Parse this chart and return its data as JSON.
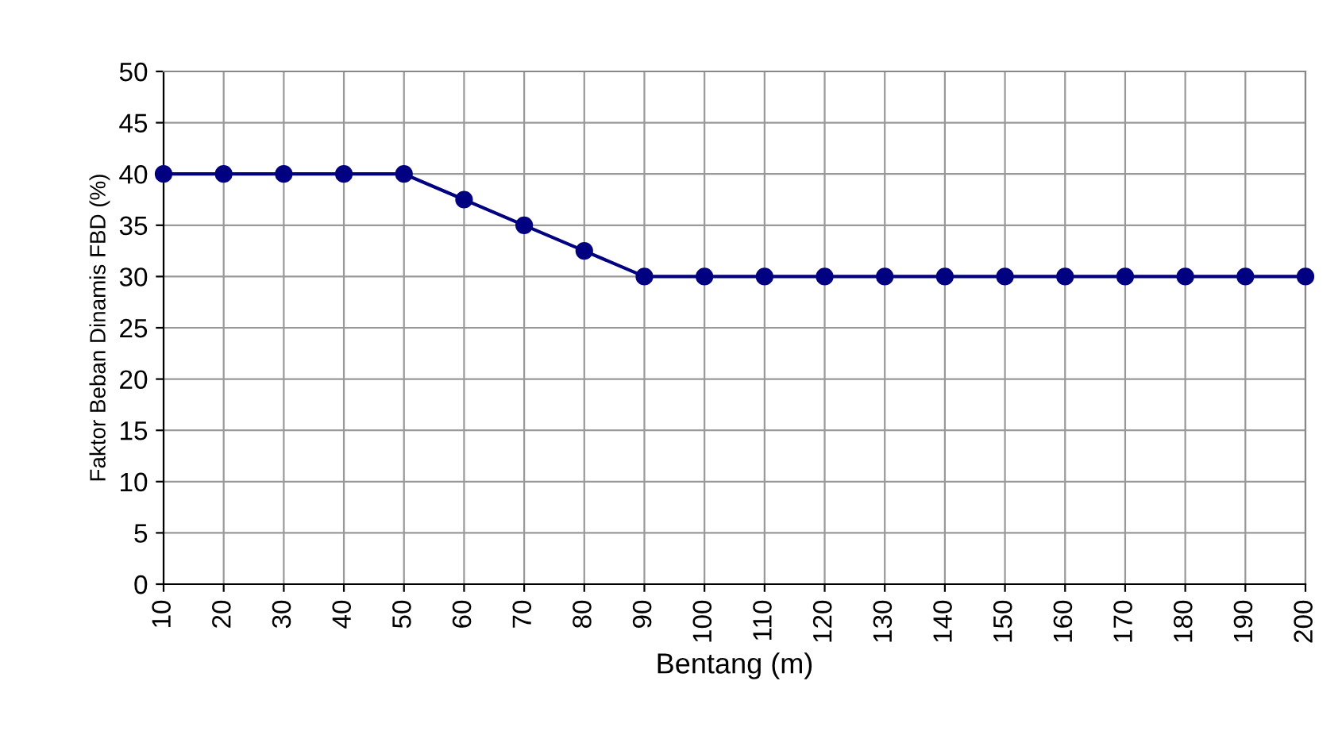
{
  "chart_data": {
    "type": "line",
    "xlabel": "Bentang (m)",
    "ylabel": "Faktor Beban Dinamis FBD (%)",
    "x": [
      10,
      20,
      30,
      40,
      50,
      60,
      70,
      80,
      90,
      100,
      110,
      120,
      130,
      140,
      150,
      160,
      170,
      180,
      190,
      200
    ],
    "series": [
      {
        "color": "#000080",
        "values": [
          40,
          40,
          40,
          40,
          40,
          37.5,
          35,
          32.5,
          30,
          30,
          30,
          30,
          30,
          30,
          30,
          30,
          30,
          30,
          30,
          30
        ]
      }
    ],
    "xlim": [
      10,
      200
    ],
    "xticks": [
      10,
      20,
      30,
      40,
      50,
      60,
      70,
      80,
      90,
      100,
      110,
      120,
      130,
      140,
      150,
      160,
      170,
      180,
      190,
      200
    ],
    "ylim": [
      0,
      50
    ],
    "yticks": [
      0,
      5,
      10,
      15,
      20,
      25,
      30,
      35,
      40,
      45,
      50
    ],
    "grid": true,
    "marker": "circle",
    "line_style": "solid",
    "legend": false
  }
}
